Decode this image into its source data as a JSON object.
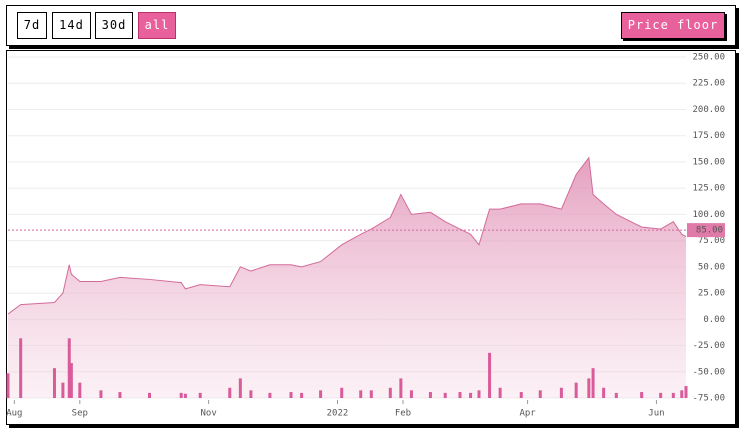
{
  "toolbar": {
    "ranges": [
      "7d",
      "14d",
      "30d",
      "all"
    ],
    "active": 3,
    "price_floor_button": "Price floor"
  },
  "chart_data": {
    "type": "area",
    "x": [
      -3,
      3,
      19,
      23,
      26,
      27,
      31,
      41,
      50,
      64,
      79,
      81,
      88,
      102,
      107,
      112,
      121,
      131,
      136,
      145,
      155,
      164,
      169,
      178,
      183,
      188,
      197,
      204,
      211,
      216,
      220,
      225,
      230,
      240,
      249,
      259,
      266,
      272,
      274,
      279,
      285,
      297,
      306,
      312,
      316,
      318
    ],
    "series": [
      {
        "color": "#d46a9a",
        "values": [
          5,
          14,
          16,
          25,
          52,
          43,
          36,
          36,
          40,
          38,
          35,
          29,
          33,
          31,
          50,
          46,
          52,
          52,
          50,
          55,
          71,
          81,
          86,
          97,
          119,
          100,
          102,
          93,
          86,
          81,
          71,
          105,
          105,
          110,
          110,
          105,
          138,
          154,
          119,
          110,
          100,
          88,
          86,
          93,
          81,
          79
        ]
      },
      {
        "color": "#d95b9a",
        "axis": "y2",
        "values": [
          29,
          70,
          35,
          18,
          70,
          41,
          18,
          9,
          7,
          6,
          6,
          5,
          6,
          12,
          23,
          9,
          6,
          7,
          6,
          9,
          12,
          9,
          9,
          12,
          23,
          9,
          7,
          6,
          7,
          6,
          9,
          53,
          12,
          7,
          9,
          12,
          18,
          23,
          35,
          12,
          6,
          7,
          6,
          6,
          9,
          14
        ]
      }
    ],
    "xlim": [
      -3,
      318
    ],
    "xticks": [
      {
        "value": 0,
        "label": "Aug"
      },
      {
        "value": 31,
        "label": "Sep"
      },
      {
        "value": 92,
        "label": "Nov"
      },
      {
        "value": 153,
        "label": "2022"
      },
      {
        "value": 184,
        "label": "Feb"
      },
      {
        "value": 243,
        "label": "Apr"
      },
      {
        "value": 304,
        "label": "Jun"
      }
    ],
    "ylim": [
      -75,
      250
    ],
    "yticks": [
      {
        "value": 250,
        "label": "250.00"
      },
      {
        "value": 225,
        "label": "225.00"
      },
      {
        "value": 200,
        "label": "200.00"
      },
      {
        "value": 175,
        "label": "175.00"
      },
      {
        "value": 150,
        "label": "150.00"
      },
      {
        "value": 125,
        "label": "125.00"
      },
      {
        "value": 100,
        "label": "100.00"
      },
      {
        "value": 75,
        "label": "75.00"
      },
      {
        "value": 50,
        "label": "50.00"
      },
      {
        "value": 25,
        "label": "25.00"
      },
      {
        "value": 0,
        "label": "0.00"
      },
      {
        "value": -25,
        "label": "-25.00"
      },
      {
        "value": -50,
        "label": "-50.00"
      },
      {
        "value": -75,
        "label": "-75.00"
      }
    ],
    "y2lim": [
      0,
      400
    ],
    "grid": true,
    "price_floor": {
      "value": 85,
      "label": "85.00"
    }
  }
}
